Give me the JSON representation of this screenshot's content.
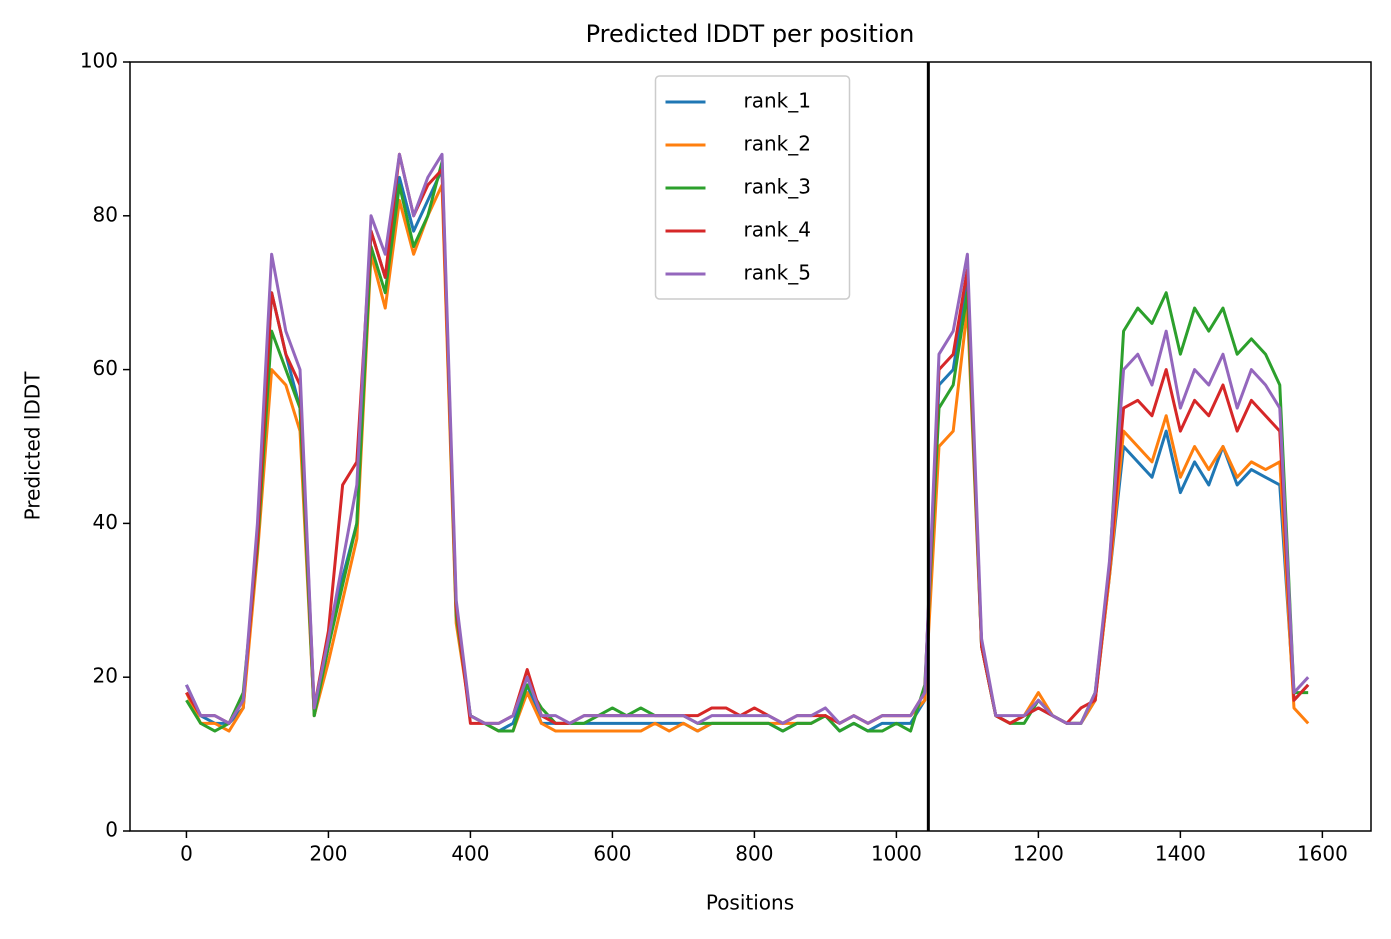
{
  "chart_data": {
    "type": "line",
    "title": "Predicted lDDT per position",
    "xlabel": "Positions",
    "ylabel": "Predicted lDDT",
    "x": [
      0,
      20,
      40,
      60,
      80,
      100,
      120,
      140,
      160,
      180,
      200,
      220,
      240,
      260,
      280,
      300,
      320,
      340,
      360,
      380,
      400,
      420,
      440,
      460,
      480,
      500,
      520,
      540,
      560,
      580,
      600,
      620,
      640,
      660,
      680,
      700,
      720,
      740,
      760,
      780,
      800,
      820,
      840,
      860,
      880,
      900,
      920,
      940,
      960,
      980,
      1000,
      1020,
      1040,
      1060,
      1080,
      1100,
      1120,
      1140,
      1160,
      1180,
      1200,
      1220,
      1240,
      1260,
      1280,
      1300,
      1320,
      1340,
      1360,
      1380,
      1400,
      1420,
      1440,
      1460,
      1480,
      1500,
      1520,
      1540,
      1560,
      1580
    ],
    "series": [
      {
        "name": "rank_1",
        "color": "#1f77b4",
        "values": [
          19,
          15,
          14,
          14,
          16,
          38,
          70,
          62,
          55,
          15,
          24,
          33,
          40,
          78,
          72,
          85,
          78,
          82,
          86,
          28,
          15,
          14,
          13,
          14,
          19,
          14,
          14,
          14,
          14,
          14,
          14,
          14,
          14,
          14,
          14,
          14,
          13,
          14,
          14,
          14,
          14,
          14,
          13,
          14,
          14,
          15,
          13,
          14,
          13,
          14,
          14,
          14,
          17,
          58,
          60,
          72,
          24,
          15,
          14,
          15,
          16,
          15,
          14,
          14,
          17,
          33,
          50,
          48,
          46,
          52,
          44,
          48,
          45,
          50,
          45,
          47,
          46,
          45,
          17,
          19
        ]
      },
      {
        "name": "rank_2",
        "color": "#ff7f0e",
        "values": [
          18,
          14,
          14,
          13,
          16,
          36,
          60,
          58,
          52,
          15,
          22,
          30,
          38,
          75,
          68,
          82,
          75,
          80,
          84,
          27,
          15,
          14,
          13,
          13,
          18,
          14,
          13,
          13,
          13,
          13,
          13,
          13,
          13,
          14,
          13,
          14,
          13,
          14,
          14,
          14,
          14,
          14,
          14,
          14,
          14,
          15,
          14,
          15,
          14,
          15,
          15,
          15,
          17,
          50,
          52,
          68,
          24,
          15,
          14,
          15,
          18,
          15,
          14,
          14,
          17,
          33,
          52,
          50,
          48,
          54,
          46,
          50,
          47,
          50,
          46,
          48,
          47,
          48,
          16,
          14
        ]
      },
      {
        "name": "rank_3",
        "color": "#2ca02c",
        "values": [
          17,
          14,
          13,
          14,
          18,
          37,
          65,
          60,
          55,
          15,
          24,
          32,
          40,
          76,
          70,
          84,
          76,
          80,
          87,
          28,
          15,
          14,
          13,
          13,
          19,
          16,
          14,
          14,
          14,
          15,
          16,
          15,
          16,
          15,
          15,
          15,
          14,
          14,
          14,
          14,
          14,
          14,
          13,
          14,
          14,
          15,
          13,
          14,
          13,
          13,
          14,
          13,
          19,
          55,
          58,
          70,
          24,
          15,
          14,
          14,
          17,
          15,
          14,
          14,
          18,
          34,
          65,
          68,
          66,
          70,
          62,
          68,
          65,
          68,
          62,
          64,
          62,
          58,
          18,
          18
        ]
      },
      {
        "name": "rank_4",
        "color": "#d62728",
        "values": [
          18,
          15,
          15,
          14,
          17,
          38,
          70,
          62,
          58,
          16,
          26,
          45,
          48,
          78,
          72,
          88,
          80,
          84,
          86,
          29,
          14,
          14,
          14,
          15,
          21,
          15,
          14,
          14,
          15,
          15,
          15,
          15,
          15,
          15,
          15,
          15,
          15,
          16,
          16,
          15,
          16,
          15,
          14,
          15,
          15,
          15,
          14,
          15,
          14,
          15,
          15,
          15,
          18,
          60,
          62,
          73,
          24,
          15,
          14,
          15,
          16,
          15,
          14,
          16,
          17,
          34,
          55,
          56,
          54,
          60,
          52,
          56,
          54,
          58,
          52,
          56,
          54,
          52,
          17,
          19
        ]
      },
      {
        "name": "rank_5",
        "color": "#9467bd",
        "values": [
          19,
          15,
          15,
          14,
          17,
          40,
          75,
          65,
          60,
          16,
          25,
          35,
          45,
          80,
          75,
          88,
          80,
          85,
          88,
          30,
          15,
          14,
          14,
          15,
          20,
          15,
          15,
          14,
          15,
          15,
          15,
          15,
          15,
          15,
          15,
          15,
          14,
          15,
          15,
          15,
          15,
          15,
          14,
          15,
          15,
          16,
          14,
          15,
          14,
          15,
          15,
          15,
          18,
          62,
          65,
          75,
          25,
          15,
          15,
          15,
          17,
          15,
          14,
          14,
          18,
          35,
          60,
          62,
          58,
          65,
          55,
          60,
          58,
          62,
          55,
          60,
          58,
          55,
          18,
          20
        ]
      }
    ],
    "vline": 1045,
    "vline_color": "#000000",
    "xlim": [
      -79.5,
      1668.5
    ],
    "xticks": [
      0,
      200,
      400,
      600,
      800,
      1000,
      1200,
      1400,
      1600
    ],
    "ylim": [
      0,
      100
    ],
    "yticks": [
      0,
      20,
      40,
      60,
      80,
      100
    ],
    "grid": false,
    "legend": "upper center"
  }
}
